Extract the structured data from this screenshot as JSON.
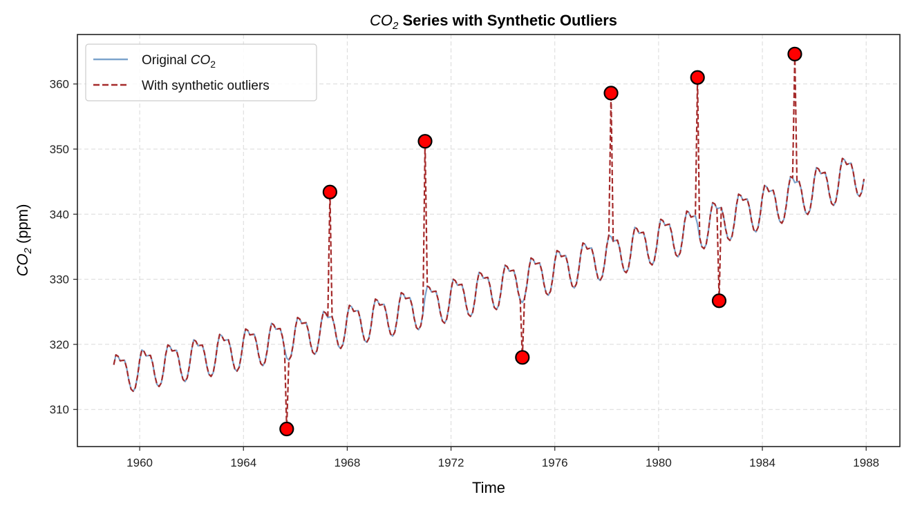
{
  "chart_data": {
    "type": "line",
    "title": {
      "prefix": "CO",
      "subscript": "2",
      "suffix": " Series with Synthetic Outliers"
    },
    "xlabel": "Time",
    "ylabel": {
      "prefix": "CO",
      "subscript": "2",
      "suffix": " (ppm)"
    },
    "xlim": [
      1957.6,
      1989.3
    ],
    "ylim": [
      304.3,
      367.6
    ],
    "xticks": [
      1960,
      1964,
      1968,
      1972,
      1976,
      1980,
      1984,
      1988
    ],
    "yticks": [
      310,
      320,
      330,
      340,
      350,
      360
    ],
    "grid": true,
    "legend": {
      "position": "top-left",
      "entries": [
        {
          "label_prefix": "Original ",
          "label_math": "CO",
          "label_sub": "2",
          "style": "solid",
          "color": "#7ba3cc"
        },
        {
          "label_prefix": "With synthetic outliers",
          "label_math": "",
          "label_sub": "",
          "style": "dashed",
          "color": "#a52a2a"
        }
      ]
    },
    "series_model": {
      "start": 1959.0,
      "end": 1987.917,
      "step": 0.08333,
      "description": "monthly CO2 ppm, 1959-1987"
    },
    "series": [
      {
        "name": "Original CO2",
        "color": "#7ba3cc",
        "style": "solid"
      },
      {
        "name": "With synthetic outliers",
        "color": "#a52a2a",
        "style": "dashed"
      }
    ],
    "outliers": [
      {
        "x": 1965.67,
        "y": 307.0
      },
      {
        "x": 1967.33,
        "y": 343.4
      },
      {
        "x": 1971.0,
        "y": 351.2
      },
      {
        "x": 1974.75,
        "y": 318.0
      },
      {
        "x": 1978.17,
        "y": 358.6
      },
      {
        "x": 1981.5,
        "y": 361.0
      },
      {
        "x": 1982.33,
        "y": 326.7
      },
      {
        "x": 1985.25,
        "y": 364.6
      }
    ],
    "colors": {
      "outlier_fill": "#ff0000",
      "outlier_edge": "#000000",
      "grid": "#d9d9d9"
    }
  }
}
